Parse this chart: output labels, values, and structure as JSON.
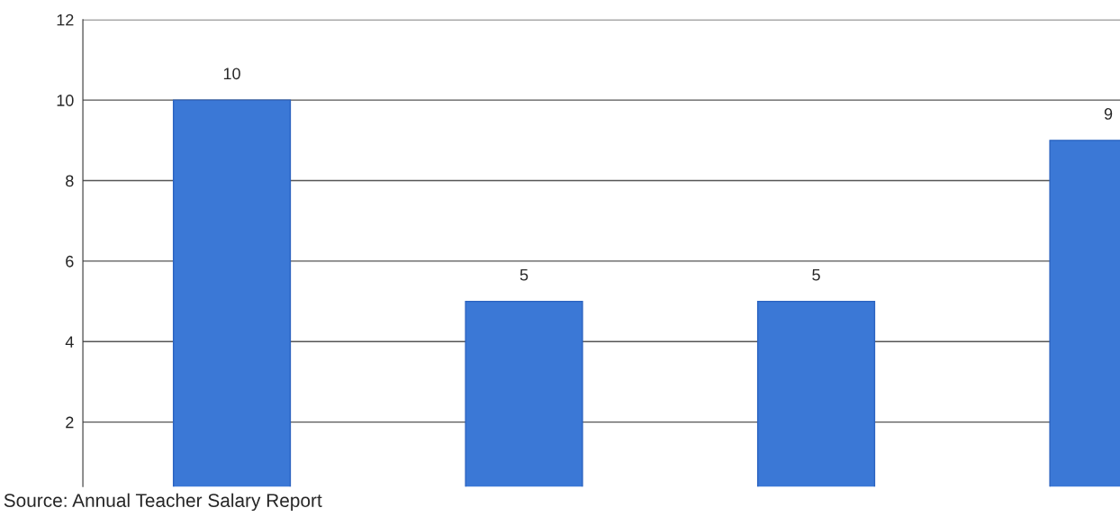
{
  "chart_data": {
    "type": "bar",
    "categories": [
      null,
      null,
      null,
      null
    ],
    "values": [
      10,
      5,
      5,
      9
    ],
    "color": "#3b78d6",
    "ylim": [
      0.4,
      12
    ],
    "yticks": [
      2,
      4,
      6,
      8,
      10,
      12
    ],
    "grid": "y",
    "data_labels": true,
    "annotations": [
      "Source: Annual Teacher Salary Report"
    ]
  }
}
